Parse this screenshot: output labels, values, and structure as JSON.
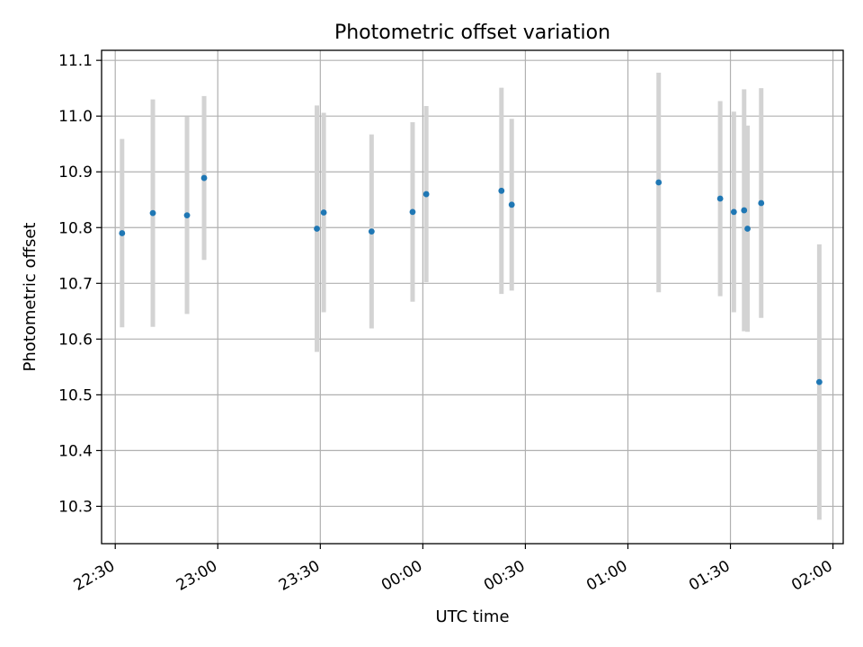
{
  "chart_data": {
    "type": "scatter",
    "title": "Photometric offset variation",
    "xlabel": "UTC time",
    "ylabel": "Photometric offset",
    "x_axis_kind": "time",
    "xlim": [
      "2023-01-01T22:26",
      "2023-01-02T02:03"
    ],
    "ylim": [
      10.233,
      11.118
    ],
    "grid": true,
    "legend": "none",
    "x_ticks": [
      {
        "t": "2023-01-01T22:30",
        "label": "22:30"
      },
      {
        "t": "2023-01-01T23:00",
        "label": "23:00"
      },
      {
        "t": "2023-01-01T23:30",
        "label": "23:30"
      },
      {
        "t": "2023-01-02T00:00",
        "label": "00:00"
      },
      {
        "t": "2023-01-02T00:30",
        "label": "00:30"
      },
      {
        "t": "2023-01-02T01:00",
        "label": "01:00"
      },
      {
        "t": "2023-01-02T01:30",
        "label": "01:30"
      },
      {
        "t": "2023-01-02T02:00",
        "label": "02:00"
      }
    ],
    "y_ticks": [
      10.3,
      10.4,
      10.5,
      10.6,
      10.7,
      10.8,
      10.9,
      11.0,
      11.1
    ],
    "y_tick_labels": [
      "10.3",
      "10.4",
      "10.5",
      "10.6",
      "10.7",
      "10.8",
      "10.9",
      "11.0",
      "11.1"
    ],
    "colors": {
      "point": "#1f77b4",
      "errorbar": "#d3d3d3",
      "grid": "#b0b0b0",
      "axes": "#000000"
    },
    "series": [
      {
        "points": [
          {
            "t": "2023-01-01T22:32",
            "y": 10.79,
            "err": 0.169
          },
          {
            "t": "2023-01-01T22:41",
            "y": 10.826,
            "err": 0.204
          },
          {
            "t": "2023-01-01T22:51",
            "y": 10.822,
            "err": 0.177
          },
          {
            "t": "2023-01-01T22:56",
            "y": 10.889,
            "err": 0.147
          },
          {
            "t": "2023-01-01T23:29",
            "y": 10.798,
            "err": 0.221
          },
          {
            "t": "2023-01-01T23:31",
            "y": 10.827,
            "err": 0.179
          },
          {
            "t": "2023-01-01T23:45",
            "y": 10.793,
            "err": 0.174
          },
          {
            "t": "2023-01-01T23:57",
            "y": 10.828,
            "err": 0.161
          },
          {
            "t": "2023-01-02T00:01",
            "y": 10.86,
            "err": 0.158
          },
          {
            "t": "2023-01-02T00:23",
            "y": 10.866,
            "err": 0.185
          },
          {
            "t": "2023-01-02T00:26",
            "y": 10.841,
            "err": 0.154
          },
          {
            "t": "2023-01-02T01:09",
            "y": 10.881,
            "err": 0.197
          },
          {
            "t": "2023-01-02T01:27",
            "y": 10.852,
            "err": 0.175
          },
          {
            "t": "2023-01-02T01:31",
            "y": 10.828,
            "err": 0.18
          },
          {
            "t": "2023-01-02T01:34",
            "y": 10.831,
            "err": 0.217
          },
          {
            "t": "2023-01-02T01:35",
            "y": 10.798,
            "err": 0.185
          },
          {
            "t": "2023-01-02T01:39",
            "y": 10.844,
            "err": 0.206
          },
          {
            "t": "2023-01-02T01:56",
            "y": 10.523,
            "err": 0.247
          }
        ]
      }
    ]
  }
}
